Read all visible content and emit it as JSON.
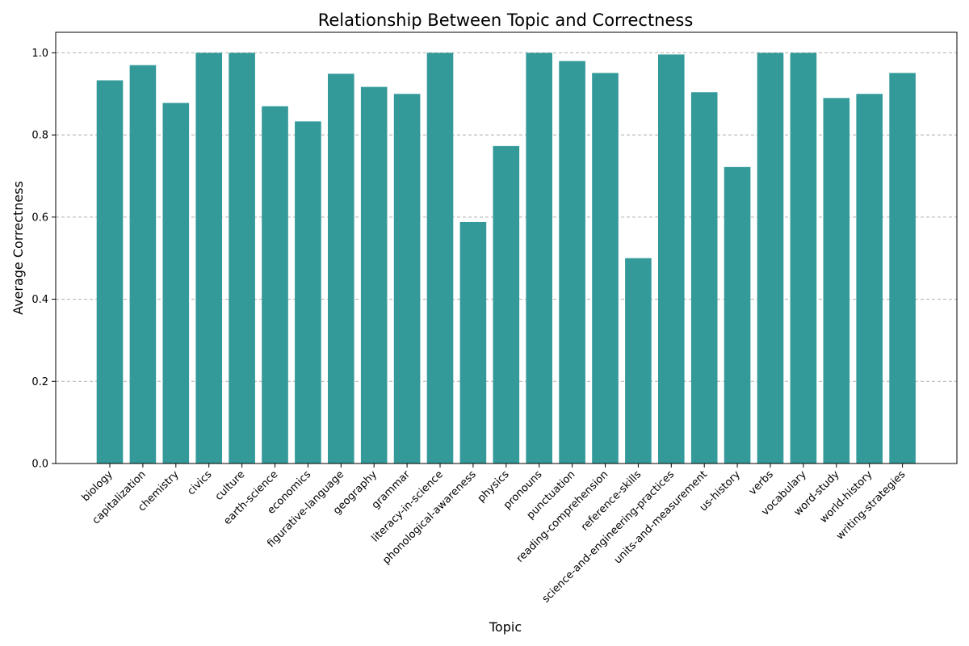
{
  "chart_data": {
    "type": "bar",
    "title": "Relationship Between Topic and Correctness",
    "xlabel": "Topic",
    "ylabel": "Average Correctness",
    "categories": [
      "biology",
      "capitalization",
      "chemistry",
      "civics",
      "culture",
      "earth-science",
      "economics",
      "figurative-language",
      "geography",
      "grammar",
      "literacy-in-science",
      "phonological-awareness",
      "physics",
      "pronouns",
      "punctuation",
      "reading-comprehension",
      "reference-skills",
      "science-and-engineering-practices",
      "units-and-measurement",
      "us-history",
      "verbs",
      "vocabulary",
      "word-study",
      "world-history",
      "writing-strategies"
    ],
    "values": [
      0.933,
      0.97,
      0.878,
      1.0,
      1.0,
      0.87,
      0.833,
      0.949,
      0.917,
      0.9,
      1.0,
      0.588,
      0.773,
      1.0,
      0.98,
      0.951,
      0.5,
      0.996,
      0.904,
      0.722,
      1.0,
      1.0,
      0.89,
      0.9,
      0.951
    ],
    "ylim": [
      0,
      1.05
    ],
    "yticks": [
      "0.0",
      "0.2",
      "0.4",
      "0.6",
      "0.8",
      "1.0"
    ],
    "grid": "y-axis dashed",
    "bar_color": "#339999"
  }
}
